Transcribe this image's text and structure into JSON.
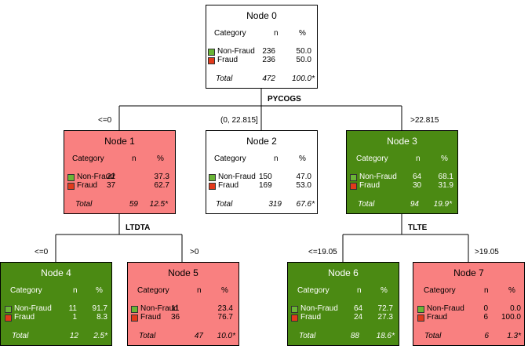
{
  "headers": {
    "category": "Category",
    "n": "n",
    "pct": "%"
  },
  "cat_labels": {
    "nonfraud": "Non-Fraud",
    "fraud": "Fraud",
    "total": "Total"
  },
  "colors": {
    "nonfraud": "#6ab536",
    "fraud": "#e23a1b",
    "red_node": "#f98080",
    "green_node": "#4b8a13"
  },
  "nodes": [
    {
      "title": "Node 0",
      "nf_n": "236",
      "nf_p": "50.0",
      "fr_n": "236",
      "fr_p": "50.0",
      "tot_n": "472",
      "tot_p": "100.0*"
    },
    {
      "title": "Node 1",
      "nf_n": "22",
      "nf_p": "37.3",
      "fr_n": "37",
      "fr_p": "62.7",
      "tot_n": "59",
      "tot_p": "12.5*"
    },
    {
      "title": "Node 2",
      "nf_n": "150",
      "nf_p": "47.0",
      "fr_n": "169",
      "fr_p": "53.0",
      "tot_n": "319",
      "tot_p": "67.6*"
    },
    {
      "title": "Node 3",
      "nf_n": "64",
      "nf_p": "68.1",
      "fr_n": "30",
      "fr_p": "31.9",
      "tot_n": "94",
      "tot_p": "19.9*"
    },
    {
      "title": "Node 4",
      "nf_n": "11",
      "nf_p": "91.7",
      "fr_n": "1",
      "fr_p": "8.3",
      "tot_n": "12",
      "tot_p": "2.5*"
    },
    {
      "title": "Node 5",
      "nf_n": "11",
      "nf_p": "23.4",
      "fr_n": "36",
      "fr_p": "76.7",
      "tot_n": "47",
      "tot_p": "10.0*"
    },
    {
      "title": "Node 6",
      "nf_n": "64",
      "nf_p": "72.7",
      "fr_n": "24",
      "fr_p": "27.3",
      "tot_n": "88",
      "tot_p": "18.6*"
    },
    {
      "title": "Node 7",
      "nf_n": "0",
      "nf_p": "0.0",
      "fr_n": "6",
      "fr_p": "100.0",
      "tot_n": "6",
      "tot_p": "1.3*"
    }
  ],
  "splits": {
    "root": "PYCOGS",
    "node1": "LTDTA",
    "node3": "TLTE"
  },
  "branches": {
    "n0_left": "<=0",
    "n0_mid": "(0, 22.815]",
    "n0_right": ">22.815",
    "n1_left": "<=0",
    "n1_right": ">0",
    "n3_left": "<=19.05",
    "n3_right": ">19.05"
  }
}
